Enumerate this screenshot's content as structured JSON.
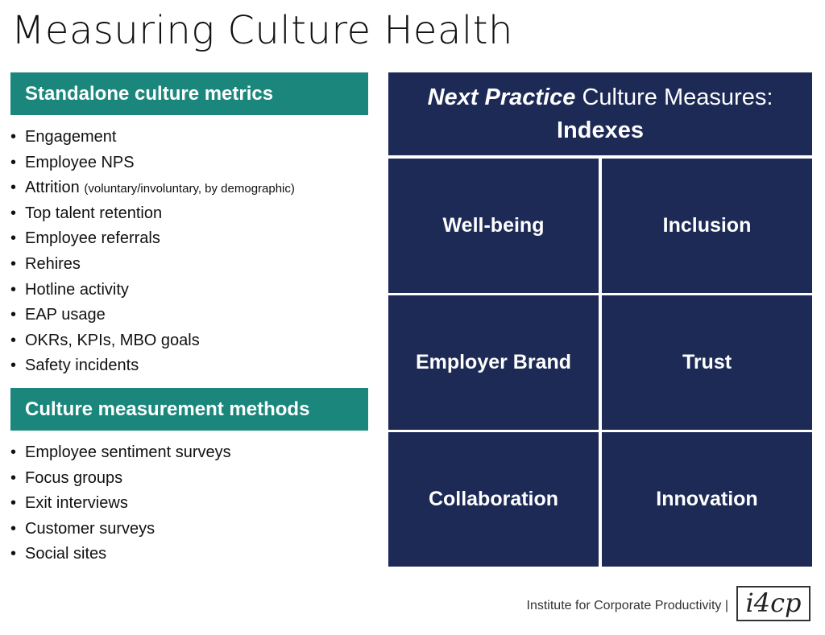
{
  "header": {
    "title": "Measuring Culture Health"
  },
  "sections": [
    {
      "heading": "Standalone culture metrics",
      "items": [
        "Engagement",
        "Employee NPS",
        {
          "text": "Attrition",
          "note": "(voluntary/involuntary, by demographic)"
        },
        "Top talent retention",
        "Employee referrals",
        "Rehires",
        "Hotline activity",
        "EAP usage",
        "OKRs, KPIs, MBO goals",
        "Safety incidents"
      ]
    },
    {
      "heading": "Culture measurement methods",
      "items": [
        "Employee sentiment surveys",
        "Focus groups",
        "Exit interviews",
        "Customer surveys",
        "Social sites"
      ]
    }
  ],
  "indexes": {
    "title_emphasis": "Next Practice",
    "title_rest": "Culture Measures:",
    "subtitle": "Indexes",
    "cells": [
      "Well-being",
      "Inclusion",
      "Employer Brand",
      "Trust",
      "Collaboration",
      "Innovation"
    ]
  },
  "footer": {
    "org": "Institute for Corporate Productivity |",
    "logo": "i4cp"
  }
}
